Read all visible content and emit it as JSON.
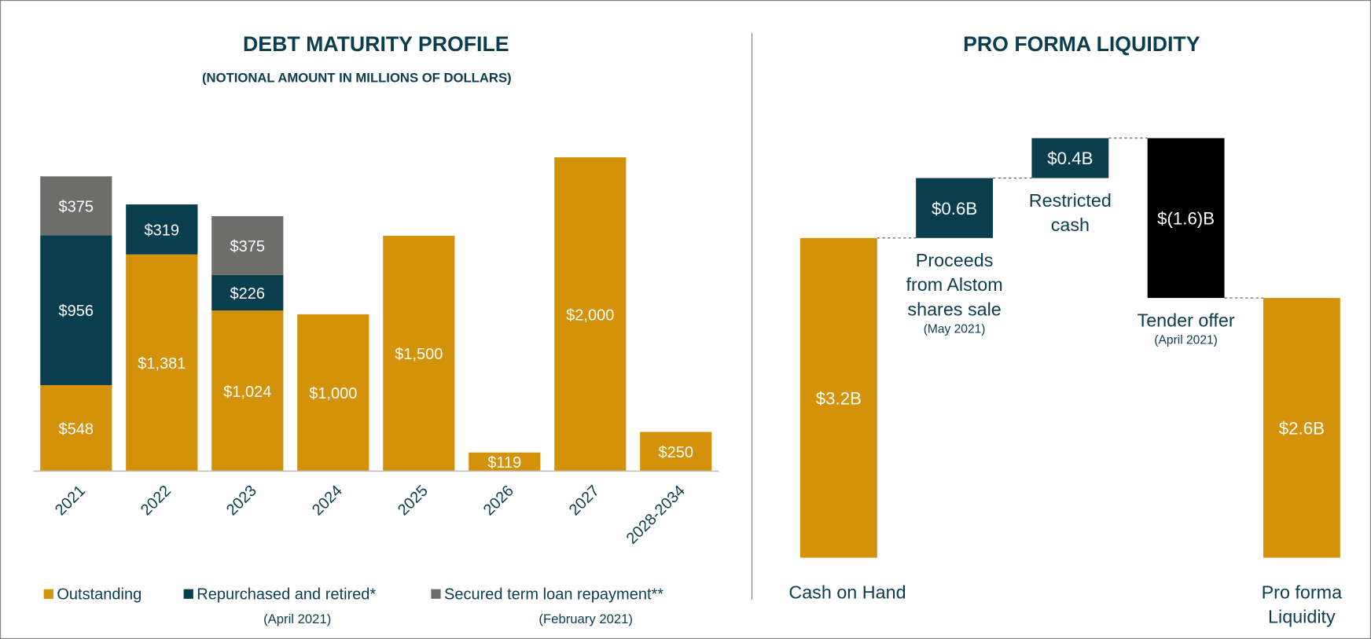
{
  "chart_data": [
    {
      "type": "stacked_bar",
      "title": "DEBT MATURITY PROFILE",
      "subtitle": "(NOTIONAL AMOUNT IN MILLIONS OF DOLLARS)",
      "categories": [
        "2021",
        "2022",
        "2023",
        "2024",
        "2025",
        "2026",
        "2027",
        "2028-2034"
      ],
      "series": [
        {
          "name": "Outstanding",
          "color": "#d4920a",
          "values": [
            548,
            1381,
            1024,
            1000,
            1500,
            119,
            2000,
            250
          ],
          "value_labels": [
            "$548",
            "$1,381",
            "$1,024",
            "$1,000",
            "$1,500",
            "$119",
            "$2,000",
            "$250"
          ]
        },
        {
          "name": "Repurchased and retired*",
          "note": "(April 2021)",
          "color": "#0a3d4d",
          "values": [
            956,
            319,
            226,
            null,
            null,
            null,
            null,
            null
          ],
          "value_labels": [
            "$956",
            "$319",
            "$226",
            null,
            null,
            null,
            null,
            null
          ]
        },
        {
          "name": "Secured term loan repayment**",
          "note": "(February 2021)",
          "color": "#6d6e6b",
          "values": [
            375,
            null,
            375,
            null,
            null,
            null,
            null,
            null
          ],
          "value_labels": [
            "$375",
            null,
            "$375",
            null,
            null,
            null,
            null,
            null
          ]
        }
      ],
      "ylim": [
        0,
        2000
      ],
      "legend": "bottom"
    },
    {
      "type": "waterfall",
      "title": "PRO FORMA LIQUIDITY",
      "categories": [
        [
          "Cash on Hand"
        ],
        [
          "Proceeds",
          "from Alstom",
          "shares sale"
        ],
        [
          "Restricted",
          "cash"
        ],
        [
          "Tender offer"
        ],
        [
          "Pro forma",
          "Liquidity"
        ]
      ],
      "category_notes": [
        null,
        "(May 2021)",
        null,
        "(April 2021)",
        null
      ],
      "measure": [
        "absolute",
        "relative",
        "relative",
        "relative",
        "total"
      ],
      "values": [
        3.2,
        0.6,
        0.4,
        -1.6,
        2.6
      ],
      "value_labels": [
        "$3.2B",
        "$0.6B",
        "$0.4B",
        "$(1.6)B",
        "$2.6B"
      ],
      "colors": [
        "#d4920a",
        "#0a3d4d",
        "#0a3d4d",
        "#000000",
        "#d4920a"
      ],
      "ylim": [
        0,
        4.2
      ]
    }
  ]
}
